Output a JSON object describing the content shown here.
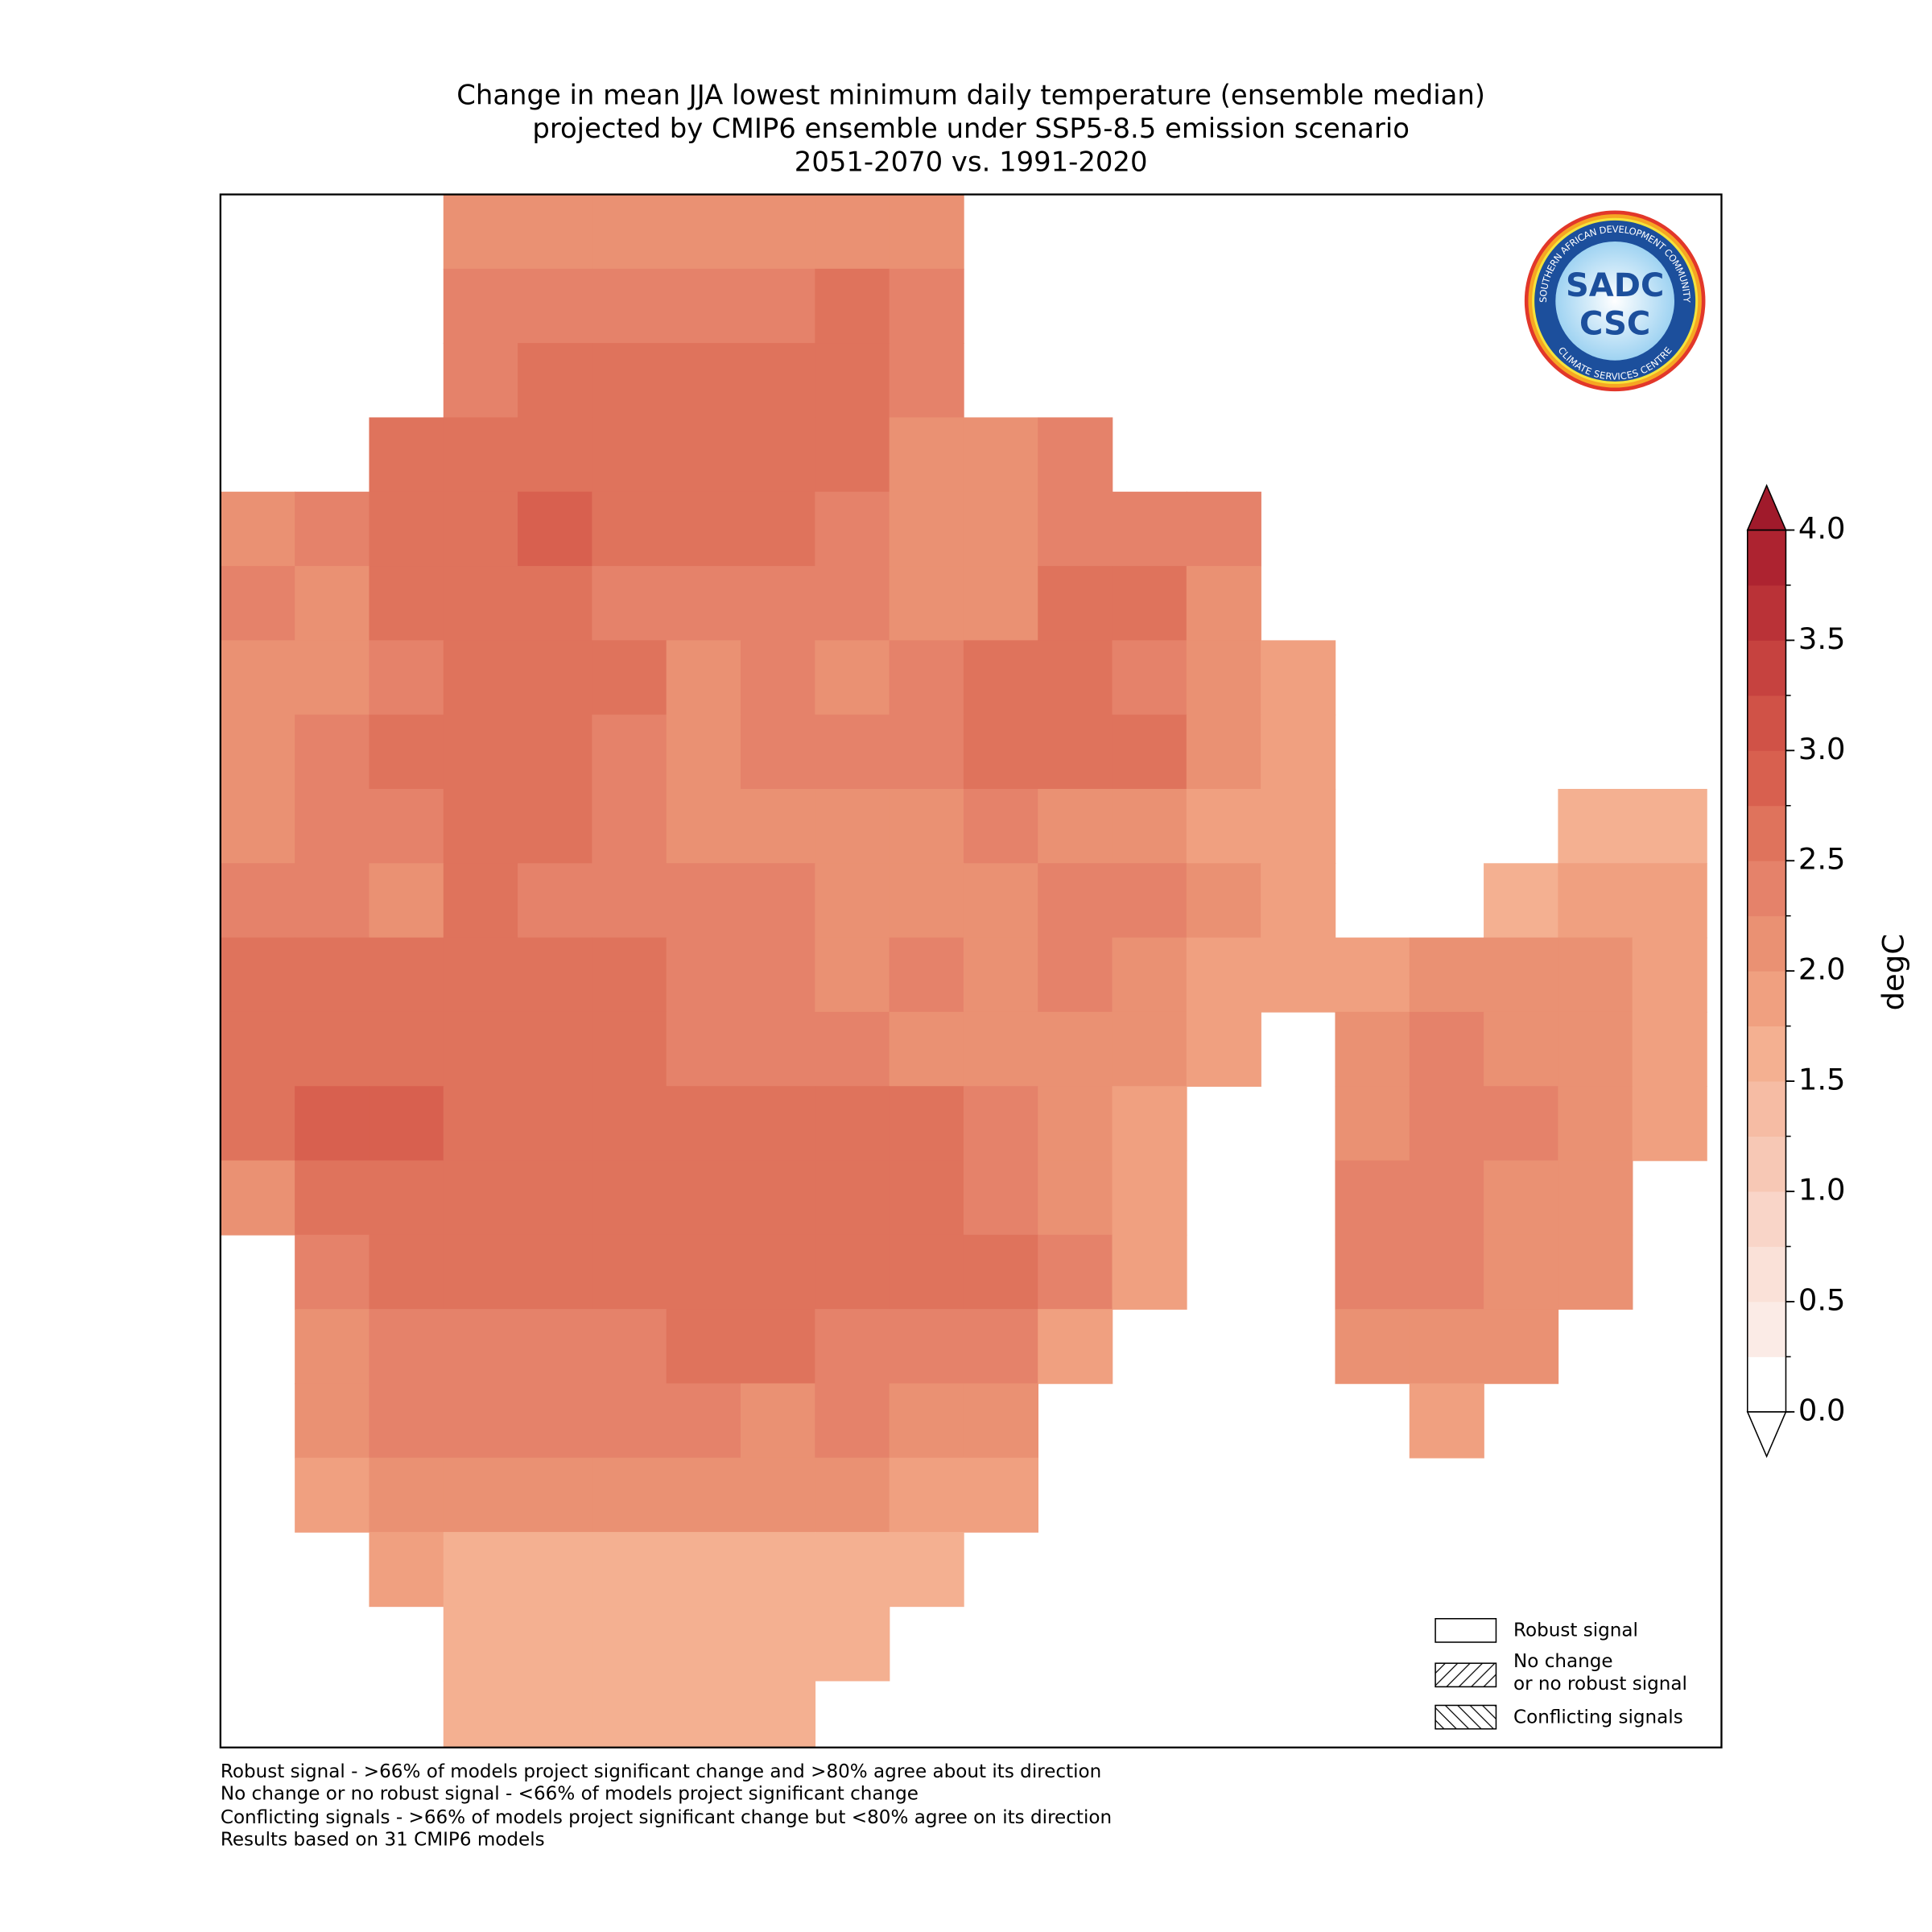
{
  "title": [
    "Change in mean JJA lowest minimum daily temperature (ensemble median)",
    "projected by CMIP6 ensemble under SSP5-8.5 emission scenario",
    "2051-2070 vs. 1991-2020"
  ],
  "map": {
    "grid": [
      [
        null,
        null,
        null,
        2.2,
        2.2,
        2.2,
        2.2,
        2.2,
        2.2,
        2.2,
        null,
        null,
        null,
        null,
        null,
        null,
        null,
        null,
        null,
        null
      ],
      [
        null,
        null,
        null,
        2.3,
        2.3,
        2.3,
        2.4,
        2.4,
        2.5,
        2.4,
        null,
        null,
        null,
        null,
        null,
        null,
        null,
        null,
        null,
        null
      ],
      [
        null,
        null,
        null,
        2.3,
        2.5,
        2.5,
        2.5,
        2.6,
        2.5,
        2.3,
        null,
        null,
        null,
        null,
        null,
        null,
        null,
        null,
        null,
        null
      ],
      [
        null,
        null,
        2.5,
        2.7,
        2.7,
        2.6,
        2.6,
        2.6,
        2.5,
        2.1,
        2.0,
        2.3,
        null,
        null,
        null,
        null,
        null,
        null,
        null,
        null
      ],
      [
        2.2,
        2.4,
        2.6,
        2.7,
        2.8,
        2.7,
        2.6,
        2.6,
        2.3,
        2.0,
        2.0,
        2.4,
        2.4,
        2.3,
        null,
        null,
        null,
        null,
        null,
        null
      ],
      [
        2.3,
        2.2,
        2.6,
        2.7,
        2.6,
        2.4,
        2.3,
        2.4,
        2.4,
        2.1,
        2.2,
        2.6,
        2.5,
        2.2,
        null,
        null,
        null,
        null,
        null,
        null
      ],
      [
        2.1,
        2.0,
        2.4,
        2.6,
        2.5,
        2.6,
        2.2,
        2.3,
        2.2,
        2.3,
        2.5,
        2.6,
        2.4,
        2.1,
        1.9,
        null,
        null,
        null,
        null,
        null
      ],
      [
        2.2,
        2.4,
        2.5,
        2.6,
        2.5,
        2.4,
        2.2,
        2.3,
        2.3,
        2.3,
        2.6,
        2.7,
        2.5,
        2.0,
        1.8,
        null,
        null,
        null,
        null,
        null
      ],
      [
        2.2,
        2.3,
        2.4,
        2.6,
        2.5,
        2.3,
        2.2,
        2.2,
        2.2,
        2.2,
        2.4,
        2.2,
        2.2,
        1.9,
        1.8,
        null,
        null,
        null,
        1.7,
        1.7
      ],
      [
        2.3,
        2.3,
        2.2,
        2.5,
        2.4,
        2.4,
        2.3,
        2.3,
        2.2,
        2.2,
        2.2,
        2.3,
        2.3,
        2.1,
        1.9,
        null,
        null,
        1.7,
        1.9,
        1.8
      ],
      [
        2.6,
        2.6,
        2.5,
        2.5,
        2.5,
        2.5,
        2.4,
        2.3,
        2.2,
        2.3,
        2.2,
        2.3,
        2.1,
        1.9,
        1.8,
        1.9,
        2.0,
        2.1,
        2.1,
        1.8
      ],
      [
        2.6,
        2.7,
        2.7,
        2.6,
        2.6,
        2.5,
        2.4,
        2.4,
        2.3,
        2.2,
        2.2,
        2.2,
        2.0,
        1.8,
        null,
        2.1,
        2.3,
        2.2,
        2.1,
        1.8
      ],
      [
        2.6,
        2.8,
        2.8,
        2.7,
        2.5,
        2.6,
        2.6,
        2.5,
        2.7,
        2.5,
        2.3,
        2.2,
        1.9,
        null,
        null,
        2.2,
        2.4,
        2.3,
        2.2,
        1.8
      ],
      [
        2.1,
        2.6,
        2.7,
        2.7,
        2.6,
        2.7,
        2.6,
        2.5,
        2.5,
        2.5,
        2.4,
        2.2,
        1.9,
        null,
        null,
        2.3,
        2.4,
        2.2,
        2.0,
        null
      ],
      [
        null,
        2.4,
        2.6,
        2.6,
        2.5,
        2.6,
        2.6,
        2.6,
        2.5,
        2.5,
        2.6,
        2.3,
        1.9,
        null,
        null,
        2.3,
        2.4,
        2.2,
        2.1,
        null
      ],
      [
        null,
        2.1,
        2.4,
        2.4,
        2.4,
        2.4,
        2.5,
        2.5,
        2.4,
        2.3,
        2.3,
        1.9,
        null,
        null,
        null,
        2.2,
        2.2,
        2.0,
        null,
        null
      ],
      [
        null,
        2.0,
        2.3,
        2.3,
        2.4,
        2.3,
        2.3,
        2.2,
        2.3,
        2.1,
        2.0,
        null,
        null,
        null,
        null,
        null,
        1.9,
        null,
        null,
        null
      ],
      [
        null,
        1.9,
        2.1,
        2.2,
        2.1,
        2.1,
        2.0,
        2.0,
        2.1,
        1.9,
        1.9,
        null,
        null,
        null,
        null,
        null,
        null,
        null,
        null,
        null
      ],
      [
        null,
        null,
        1.8,
        1.7,
        1.6,
        1.6,
        1.5,
        1.6,
        1.7,
        1.7,
        null,
        null,
        null,
        null,
        null,
        null,
        null,
        null,
        null,
        null
      ],
      [
        null,
        null,
        null,
        1.6,
        1.5,
        1.6,
        1.7,
        1.7,
        1.6,
        null,
        null,
        null,
        null,
        null,
        null,
        null,
        null,
        null,
        null,
        null
      ],
      [
        null,
        null,
        null,
        1.6,
        1.6,
        1.7,
        1.6,
        1.7,
        null,
        null,
        null,
        null,
        null,
        null,
        null,
        null,
        null,
        null,
        null,
        null
      ]
    ]
  },
  "colorbar": {
    "label": "degC",
    "levels": [
      0,
      0.25,
      0.5,
      0.75,
      1,
      1.25,
      1.5,
      1.75,
      2,
      2.25,
      2.5,
      2.75,
      3,
      3.25,
      3.5,
      3.75,
      4
    ],
    "colors": [
      "#ffffff",
      "#fbebe6",
      "#fae1d8",
      "#f9d5c8",
      "#f7c8b5",
      "#f6bca4",
      "#f4b091",
      "#f0a080",
      "#ea9173",
      "#e5826a",
      "#df735c",
      "#d8604f",
      "#d05247",
      "#c6423f",
      "#ba3237",
      "#ad2330"
    ],
    "over_color": "#a01a2b",
    "under_color": "#ffffff",
    "ticks": [
      {
        "value": 0,
        "label": "0.0"
      },
      0.5,
      {
        "value": 1,
        "label": "1.0"
      },
      1.5,
      {
        "value": 2,
        "label": "2.0"
      },
      2.5,
      {
        "value": 3,
        "label": "3.0"
      },
      3.5,
      {
        "value": 4,
        "label": "4.0"
      }
    ]
  },
  "legend": [
    {
      "label": [
        "Robust signal"
      ]
    },
    {
      "label": [
        "No change",
        "or no robust signal"
      ]
    },
    {
      "label": [
        "Conflicting signals"
      ]
    }
  ],
  "footnotes": [
    "Robust signal - >66% of models project significant change and >80% agree about its direction",
    "No change or no robust signal - <66% of models project significant change",
    "Conflicting signals - >66% of models project significant change but <80% agree on its direction",
    "Results based on 31 CMIP6 models"
  ],
  "logo": {
    "top": "SADC",
    "bottom": "CSC",
    "ring_top": "SOUTHERN AFRICAN DEVELOPMENT COMMUNITY",
    "ring_bottom": "CLIMATE SERVICES CENTRE"
  }
}
